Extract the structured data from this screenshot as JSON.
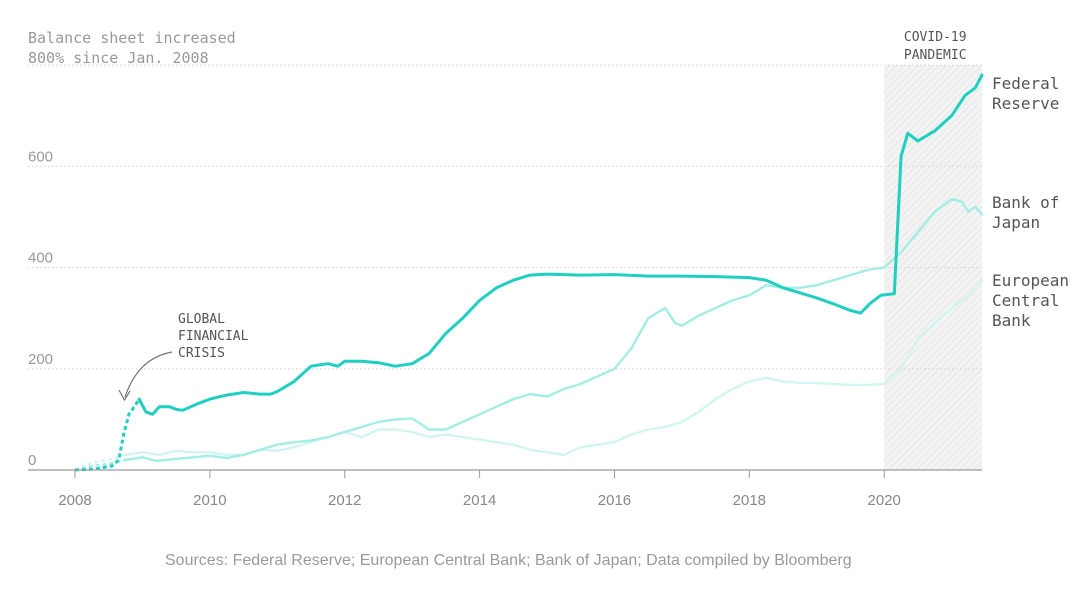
{
  "chart_data": {
    "type": "line",
    "subtitle_lines": [
      "Balance sheet increased",
      "800% since Jan. 2008"
    ],
    "xlim": [
      2008,
      2021.45
    ],
    "ylim": [
      0,
      800
    ],
    "x_ticks": [
      2008,
      2010,
      2012,
      2014,
      2016,
      2018,
      2020
    ],
    "x_tick_labels": [
      "2008",
      "2010",
      "2012",
      "2014",
      "2016",
      "2018",
      "2020"
    ],
    "y_ticks": [
      0,
      200,
      400,
      600
    ],
    "y_tick_labels": [
      "0",
      "200",
      "400",
      "600"
    ],
    "grid": true,
    "shaded_region": {
      "x": [
        2020.0,
        2021.45
      ],
      "label_lines": [
        "COVID-19",
        "PANDEMIC"
      ]
    },
    "annotation": {
      "label_lines": [
        "GLOBAL",
        "FINANCIAL",
        "CRISIS"
      ],
      "x": 2008.75,
      "y": 130
    },
    "dashed_until": 2009.0,
    "source": "Sources: Federal Reserve; European Central Bank; Bank of Japan; Data compiled by Bloomberg",
    "series": [
      {
        "label_lines": [
          "Federal",
          "Reserve"
        ],
        "color": "#1fcfbf",
        "points": [
          [
            2008.0,
            0
          ],
          [
            2008.3,
            2
          ],
          [
            2008.55,
            8
          ],
          [
            2008.65,
            20
          ],
          [
            2008.72,
            70
          ],
          [
            2008.8,
            110
          ],
          [
            2008.88,
            125
          ],
          [
            2008.95,
            140
          ],
          [
            2009.05,
            115
          ],
          [
            2009.15,
            110
          ],
          [
            2009.25,
            125
          ],
          [
            2009.4,
            125
          ],
          [
            2009.5,
            120
          ],
          [
            2009.6,
            118
          ],
          [
            2009.8,
            130
          ],
          [
            2010.0,
            140
          ],
          [
            2010.25,
            148
          ],
          [
            2010.5,
            153
          ],
          [
            2010.75,
            150
          ],
          [
            2010.9,
            150
          ],
          [
            2011.0,
            155
          ],
          [
            2011.25,
            175
          ],
          [
            2011.5,
            205
          ],
          [
            2011.75,
            210
          ],
          [
            2011.9,
            205
          ],
          [
            2012.0,
            215
          ],
          [
            2012.25,
            215
          ],
          [
            2012.5,
            212
          ],
          [
            2012.75,
            205
          ],
          [
            2012.9,
            208
          ],
          [
            2013.0,
            210
          ],
          [
            2013.25,
            230
          ],
          [
            2013.5,
            270
          ],
          [
            2013.75,
            300
          ],
          [
            2014.0,
            335
          ],
          [
            2014.25,
            360
          ],
          [
            2014.5,
            375
          ],
          [
            2014.75,
            385
          ],
          [
            2015.0,
            387
          ],
          [
            2015.5,
            385
          ],
          [
            2016.0,
            386
          ],
          [
            2016.5,
            383
          ],
          [
            2017.0,
            383
          ],
          [
            2017.5,
            382
          ],
          [
            2018.0,
            380
          ],
          [
            2018.25,
            375
          ],
          [
            2018.5,
            360
          ],
          [
            2018.75,
            350
          ],
          [
            2019.0,
            340
          ],
          [
            2019.25,
            328
          ],
          [
            2019.5,
            315
          ],
          [
            2019.65,
            310
          ],
          [
            2019.8,
            330
          ],
          [
            2019.95,
            345
          ],
          [
            2020.15,
            348
          ],
          [
            2020.25,
            620
          ],
          [
            2020.35,
            665
          ],
          [
            2020.5,
            650
          ],
          [
            2020.75,
            670
          ],
          [
            2021.0,
            700
          ],
          [
            2021.2,
            740
          ],
          [
            2021.35,
            755
          ],
          [
            2021.45,
            780
          ]
        ]
      },
      {
        "label_lines": [
          "Bank of",
          "Japan"
        ],
        "color": "#a3ede4",
        "points": [
          [
            2008.0,
            0
          ],
          [
            2008.25,
            8
          ],
          [
            2008.5,
            12
          ],
          [
            2008.75,
            20
          ],
          [
            2009.0,
            25
          ],
          [
            2009.2,
            18
          ],
          [
            2009.5,
            22
          ],
          [
            2009.75,
            25
          ],
          [
            2010.0,
            28
          ],
          [
            2010.25,
            24
          ],
          [
            2010.5,
            30
          ],
          [
            2010.75,
            40
          ],
          [
            2011.0,
            50
          ],
          [
            2011.25,
            55
          ],
          [
            2011.5,
            58
          ],
          [
            2011.75,
            65
          ],
          [
            2012.0,
            75
          ],
          [
            2012.25,
            85
          ],
          [
            2012.5,
            95
          ],
          [
            2012.75,
            100
          ],
          [
            2013.0,
            102
          ],
          [
            2013.25,
            80
          ],
          [
            2013.5,
            80
          ],
          [
            2013.75,
            95
          ],
          [
            2014.0,
            110
          ],
          [
            2014.25,
            125
          ],
          [
            2014.5,
            140
          ],
          [
            2014.75,
            150
          ],
          [
            2015.0,
            145
          ],
          [
            2015.25,
            160
          ],
          [
            2015.5,
            170
          ],
          [
            2015.75,
            185
          ],
          [
            2016.0,
            200
          ],
          [
            2016.25,
            240
          ],
          [
            2016.5,
            300
          ],
          [
            2016.75,
            320
          ],
          [
            2016.9,
            290
          ],
          [
            2017.0,
            285
          ],
          [
            2017.25,
            305
          ],
          [
            2017.5,
            320
          ],
          [
            2017.75,
            335
          ],
          [
            2018.0,
            345
          ],
          [
            2018.25,
            365
          ],
          [
            2018.5,
            360
          ],
          [
            2018.75,
            360
          ],
          [
            2019.0,
            365
          ],
          [
            2019.25,
            375
          ],
          [
            2019.5,
            385
          ],
          [
            2019.75,
            395
          ],
          [
            2020.0,
            400
          ],
          [
            2020.25,
            430
          ],
          [
            2020.5,
            470
          ],
          [
            2020.75,
            510
          ],
          [
            2021.0,
            535
          ],
          [
            2021.15,
            530
          ],
          [
            2021.25,
            510
          ],
          [
            2021.35,
            520
          ],
          [
            2021.45,
            505
          ]
        ]
      },
      {
        "label_lines": [
          "European",
          "Central",
          "Bank"
        ],
        "color": "#d3f5f1",
        "points": [
          [
            2008.0,
            0
          ],
          [
            2008.25,
            15
          ],
          [
            2008.5,
            20
          ],
          [
            2008.75,
            30
          ],
          [
            2009.0,
            35
          ],
          [
            2009.25,
            30
          ],
          [
            2009.5,
            38
          ],
          [
            2009.75,
            35
          ],
          [
            2010.0,
            35
          ],
          [
            2010.25,
            30
          ],
          [
            2010.5,
            30
          ],
          [
            2010.75,
            40
          ],
          [
            2011.0,
            38
          ],
          [
            2011.25,
            45
          ],
          [
            2011.5,
            55
          ],
          [
            2011.75,
            65
          ],
          [
            2012.0,
            75
          ],
          [
            2012.25,
            65
          ],
          [
            2012.5,
            80
          ],
          [
            2012.75,
            80
          ],
          [
            2013.0,
            75
          ],
          [
            2013.25,
            65
          ],
          [
            2013.5,
            70
          ],
          [
            2013.75,
            65
          ],
          [
            2014.0,
            60
          ],
          [
            2014.25,
            55
          ],
          [
            2014.5,
            50
          ],
          [
            2014.75,
            40
          ],
          [
            2015.0,
            35
          ],
          [
            2015.25,
            30
          ],
          [
            2015.5,
            45
          ],
          [
            2015.75,
            50
          ],
          [
            2016.0,
            55
          ],
          [
            2016.25,
            70
          ],
          [
            2016.5,
            80
          ],
          [
            2016.75,
            85
          ],
          [
            2017.0,
            95
          ],
          [
            2017.25,
            115
          ],
          [
            2017.5,
            140
          ],
          [
            2017.75,
            160
          ],
          [
            2018.0,
            175
          ],
          [
            2018.25,
            182
          ],
          [
            2018.5,
            175
          ],
          [
            2018.75,
            172
          ],
          [
            2019.0,
            172
          ],
          [
            2019.25,
            170
          ],
          [
            2019.5,
            168
          ],
          [
            2019.75,
            168
          ],
          [
            2020.0,
            170
          ],
          [
            2020.25,
            200
          ],
          [
            2020.5,
            260
          ],
          [
            2020.75,
            290
          ],
          [
            2021.0,
            320
          ],
          [
            2021.25,
            345
          ],
          [
            2021.45,
            375
          ]
        ]
      }
    ]
  }
}
